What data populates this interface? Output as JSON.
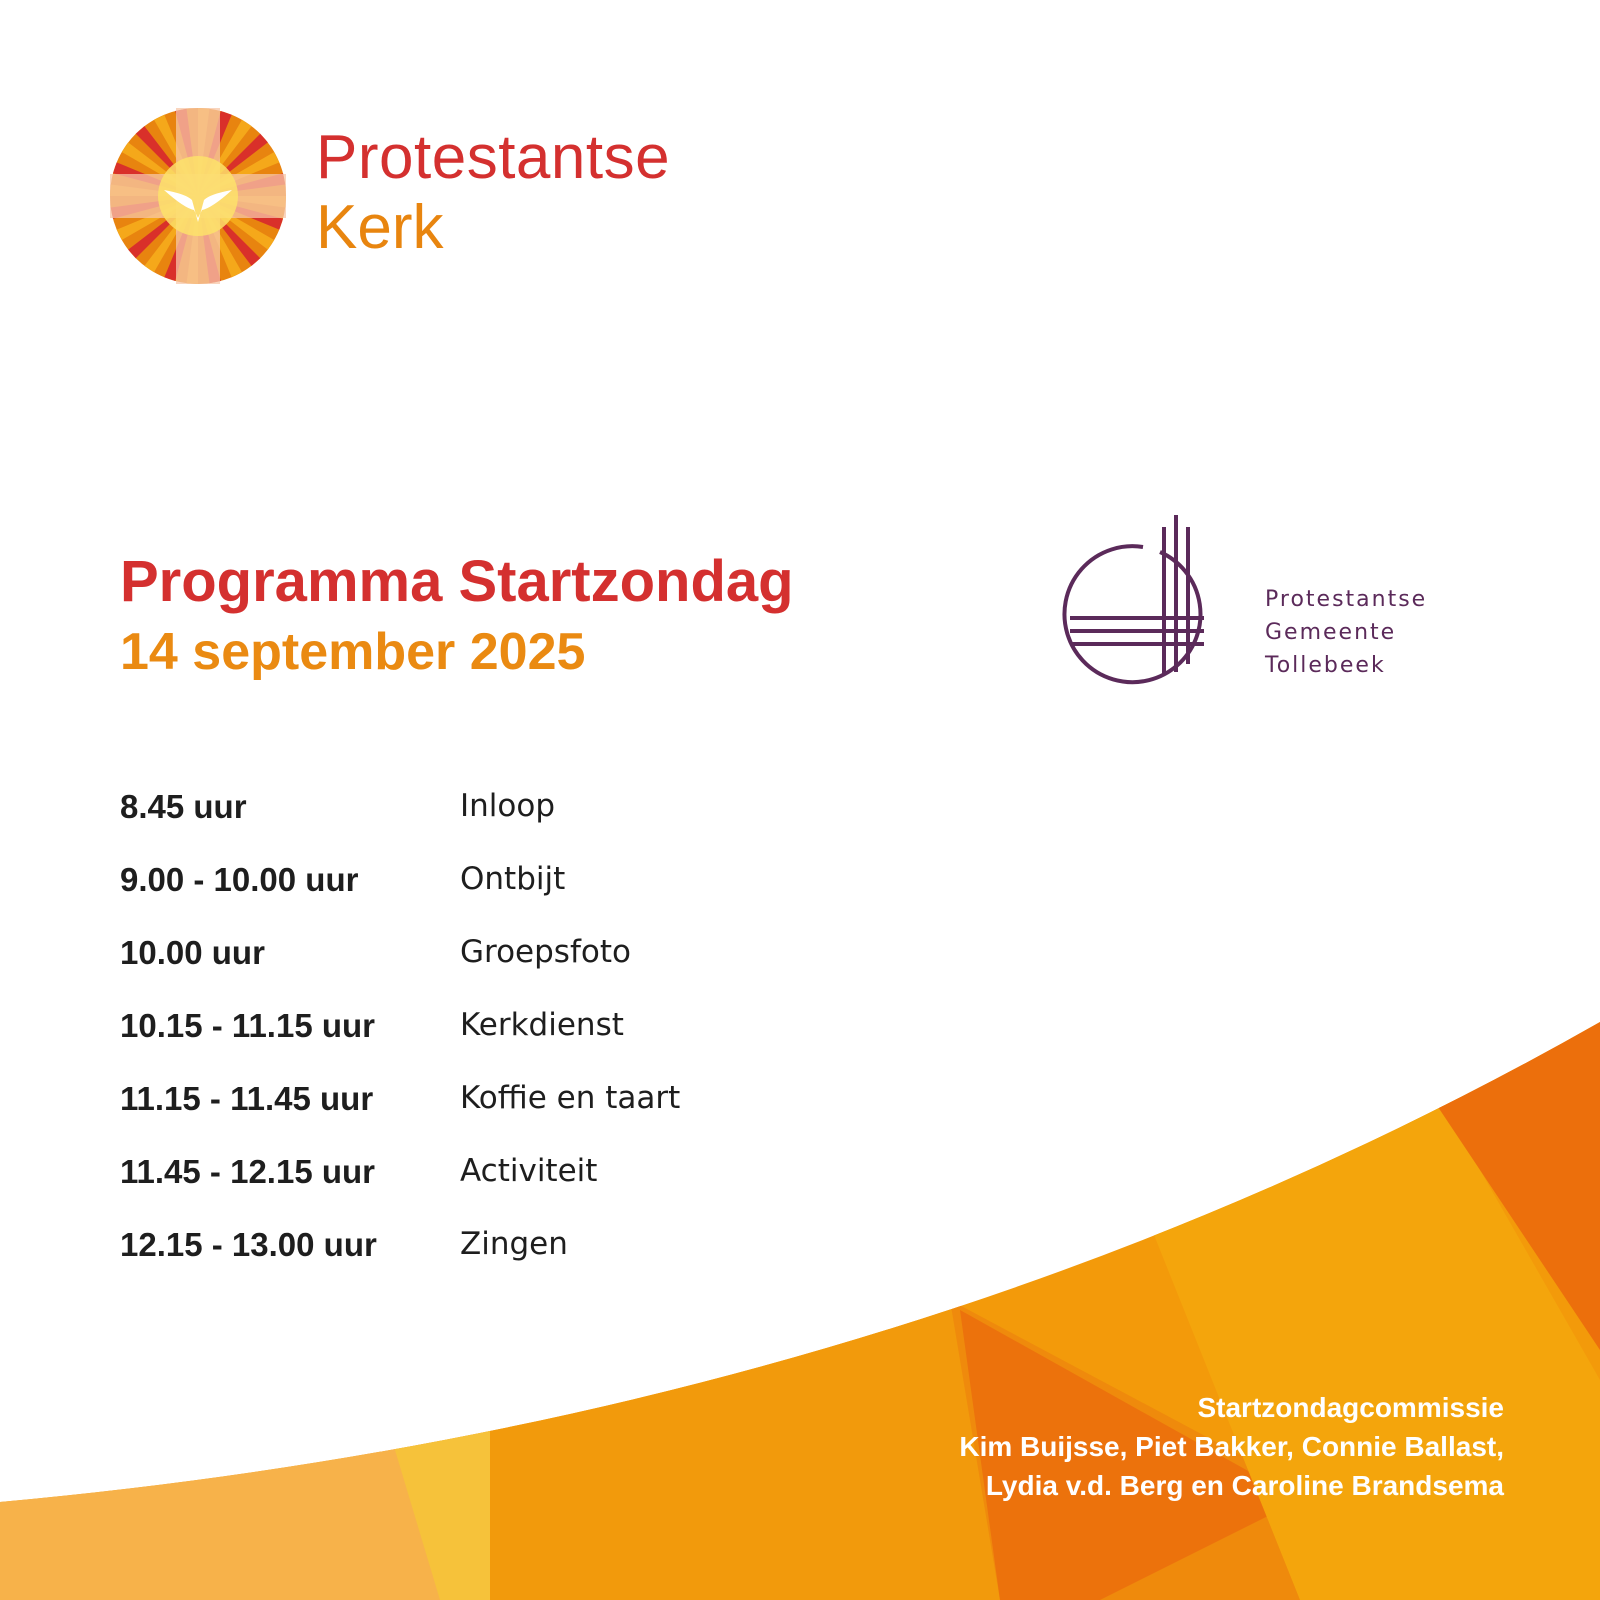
{
  "brand": {
    "line1": "Protestantse",
    "line2": "Kerk",
    "logo": "pkn-dove-sun-logo"
  },
  "heading": {
    "title": "Programma Startzondag",
    "date": "14 september 2025"
  },
  "local_church": {
    "lines": [
      "Protestantse",
      "Gemeente",
      "Tollebeek"
    ],
    "logo": "circle-cross-logo",
    "color": "#5b2a5a"
  },
  "schedule": [
    {
      "time": "8.45 uur",
      "activity": "Inloop"
    },
    {
      "time": "9.00 - 10.00 uur",
      "activity": "Ontbijt"
    },
    {
      "time": "10.00 uur",
      "activity": "Groepsfoto"
    },
    {
      "time": "10.15 - 11.15 uur",
      "activity": "Kerkdienst"
    },
    {
      "time": "11.15 - 11.45 uur",
      "activity": "Koffie en taart"
    },
    {
      "time": "11.45 - 12.15 uur",
      "activity": "Activiteit"
    },
    {
      "time": "12.15 - 13.00 uur",
      "activity": "Zingen"
    }
  ],
  "credits": {
    "heading": "Startzondagcommissie",
    "line1": "Kim Buijsse, Piet Bakker, Connie Ballast,",
    "line2": "Lydia v.d. Berg en Caroline Brandsema"
  },
  "colors": {
    "red": "#d4302f",
    "orange": "#ea8a12",
    "purple": "#5b2a5a"
  }
}
